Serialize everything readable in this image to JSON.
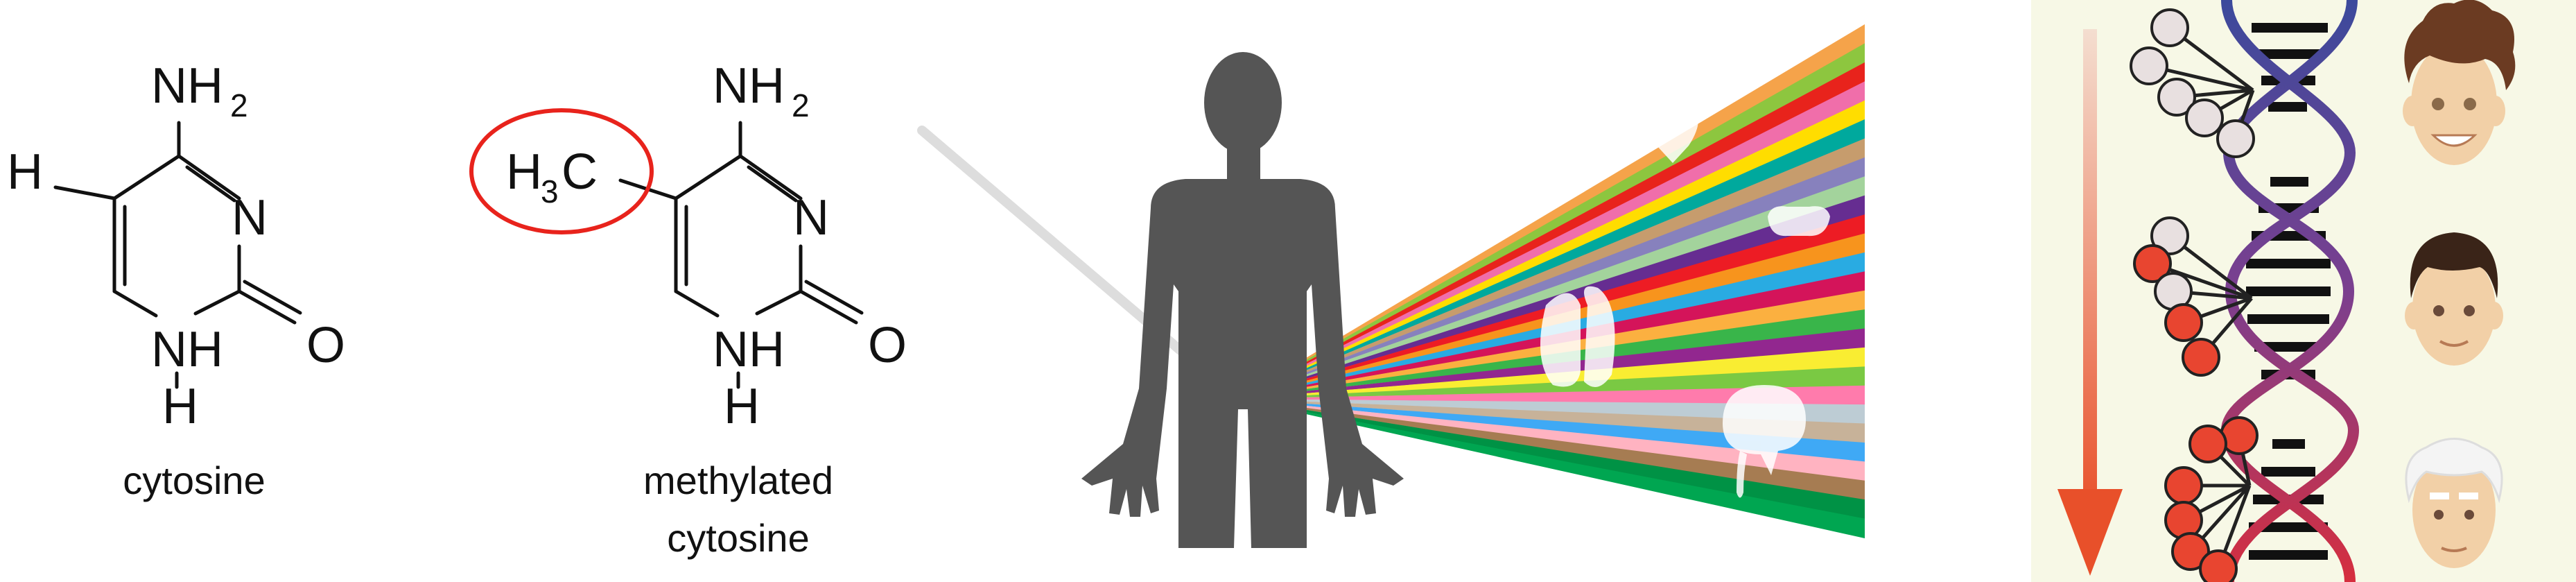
{
  "molecule_cytosine": {
    "label": "cytosine",
    "atoms": {
      "amine": "NH",
      "amine_sub": "2",
      "hydrogen_left": "H",
      "ring_n": "N",
      "oxygen": "O",
      "nh": "NH",
      "nh_h": "H"
    }
  },
  "molecule_methylated": {
    "label_line1": "methylated",
    "label_line2": "cytosine",
    "atoms": {
      "amine": "NH",
      "amine_sub": "2",
      "methyl_h": "H",
      "methyl_sub": "3",
      "methyl_c": "C",
      "ring_n": "N",
      "oxygen": "O",
      "nh": "NH",
      "nh_h": "H"
    },
    "highlight_color": "#e8231c"
  },
  "body_panel": {
    "silhouette_color": "#555555",
    "beam_colors": [
      "#f5a34a",
      "#8dc63f",
      "#e8231c",
      "#f06eaa",
      "#ffdd00",
      "#00a99d",
      "#c69c6d",
      "#8781bd",
      "#a3d39c",
      "#662d91",
      "#ed1c24",
      "#f7941d",
      "#29abe2",
      "#d4145a",
      "#fbb040",
      "#39b54a",
      "#92278f",
      "#f9ed32",
      "#7ac943",
      "#ff7bac",
      "#bdccd4",
      "#c7b299",
      "#3fa9f5",
      "#ffb3c1",
      "#a67c52",
      "#009245",
      "#00a651"
    ]
  },
  "aging_panel": {
    "background": "#f7f8e6",
    "arrow_color": "#e8502a",
    "helix_colors": {
      "top": "#3c4a9c",
      "middle": "#7b3f8f",
      "bottom": "#d62e3e"
    },
    "marker_colors": {
      "unmethylated": "#e8e0e0",
      "methylated": "#e84530"
    },
    "faces": [
      {
        "name": "young-face",
        "hair": "#6b3b22",
        "skin": "#f2d0a7"
      },
      {
        "name": "adult-face",
        "hair": "#3a2418",
        "skin": "#f2d0a7"
      },
      {
        "name": "elderly-face",
        "hair": "#f4f4f4",
        "skin": "#f2d0a7"
      }
    ]
  }
}
